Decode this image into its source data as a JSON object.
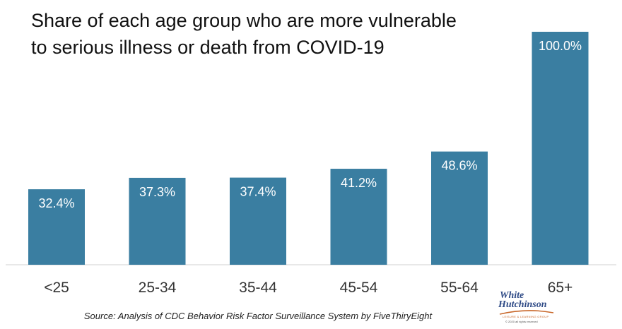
{
  "chart_data": {
    "type": "bar",
    "title_lines": [
      "Share of each age group who are more vulnerable",
      "to serious illness or death from COVID-19"
    ],
    "categories": [
      "<25",
      "25-34",
      "35-44",
      "45-54",
      "55-64",
      "65+"
    ],
    "values": [
      32.4,
      37.3,
      37.4,
      41.2,
      48.6,
      100.0
    ],
    "value_labels": [
      "32.4%",
      "37.3%",
      "37.4%",
      "41.2%",
      "48.6%",
      "100.0%"
    ],
    "ylim": [
      0,
      100
    ],
    "grid": false,
    "bar_color": "#3a7ea1"
  },
  "source": "Source: Analysis of CDC Behavior Risk Factor Surveillance System by FiveThiryEight",
  "logo": {
    "line1": "White",
    "line2": "Hutchinson",
    "tagline": "LEISURE & LEARNING GROUP",
    "copyright": "© 2020 all rights reserved"
  }
}
